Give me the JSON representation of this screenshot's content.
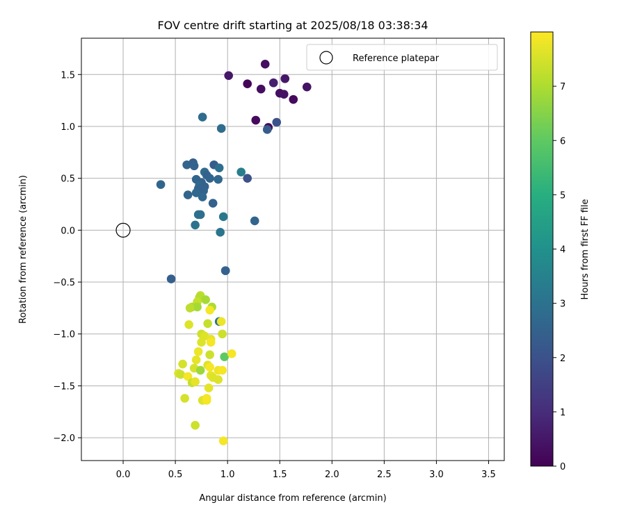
{
  "chart_data": {
    "type": "scatter",
    "title": "FOV centre drift starting at 2025/08/18 03:38:34",
    "xlabel": "Angular distance from reference (arcmin)",
    "ylabel": "Rotation from reference (arcmin)",
    "xlim": [
      -0.4,
      3.65
    ],
    "ylim": [
      -2.22,
      1.85
    ],
    "xticks": [
      0.0,
      0.5,
      1.0,
      1.5,
      2.0,
      2.5,
      3.0,
      3.5
    ],
    "yticks": [
      -2.0,
      -1.5,
      -1.0,
      -0.5,
      0.0,
      0.5,
      1.0,
      1.5
    ],
    "xtick_labels": [
      "0.0",
      "0.5",
      "1.0",
      "1.5",
      "2.0",
      "2.5",
      "3.0",
      "3.5"
    ],
    "ytick_labels": [
      "−2.0",
      "−1.5",
      "−1.0",
      "−0.5",
      "0.0",
      "0.5",
      "1.0",
      "1.5"
    ],
    "grid": true,
    "legend": {
      "location": "top-right",
      "entries": [
        "Reference platepar"
      ]
    },
    "reference_point": {
      "x": 0.0,
      "y": 0.0
    },
    "colorbar": {
      "label": "Hours from first FF file",
      "colormap": "viridis",
      "range": [
        0,
        8
      ],
      "ticks": [
        0,
        1,
        2,
        3,
        4,
        5,
        6,
        7
      ],
      "tick_labels": [
        "0",
        "1",
        "2",
        "3",
        "4",
        "5",
        "6",
        "7"
      ]
    },
    "points": [
      {
        "x": 1.36,
        "y": 1.6,
        "c": 0.3
      },
      {
        "x": 1.01,
        "y": 1.49,
        "c": 0.5
      },
      {
        "x": 1.55,
        "y": 1.46,
        "c": 0.5
      },
      {
        "x": 1.44,
        "y": 1.42,
        "c": 0.7
      },
      {
        "x": 1.19,
        "y": 1.41,
        "c": 0.1
      },
      {
        "x": 1.76,
        "y": 1.38,
        "c": 0.4
      },
      {
        "x": 1.32,
        "y": 1.36,
        "c": 0.3
      },
      {
        "x": 1.5,
        "y": 1.32,
        "c": 0.3
      },
      {
        "x": 1.54,
        "y": 1.31,
        "c": 0.4
      },
      {
        "x": 1.63,
        "y": 1.26,
        "c": 0.2
      },
      {
        "x": 1.27,
        "y": 1.06,
        "c": 0.2
      },
      {
        "x": 1.47,
        "y": 1.04,
        "c": 2.0
      },
      {
        "x": 1.39,
        "y": 0.99,
        "c": 0.1
      },
      {
        "x": 1.38,
        "y": 0.97,
        "c": 2.3
      },
      {
        "x": 0.76,
        "y": 1.09,
        "c": 2.8
      },
      {
        "x": 0.94,
        "y": 0.98,
        "c": 2.8
      },
      {
        "x": 0.61,
        "y": 0.63,
        "c": 2.6
      },
      {
        "x": 0.67,
        "y": 0.65,
        "c": 2.4
      },
      {
        "x": 0.68,
        "y": 0.62,
        "c": 2.5
      },
      {
        "x": 0.87,
        "y": 0.63,
        "c": 2.3
      },
      {
        "x": 0.92,
        "y": 0.6,
        "c": 2.9
      },
      {
        "x": 0.78,
        "y": 0.56,
        "c": 2.8
      },
      {
        "x": 0.8,
        "y": 0.53,
        "c": 2.5
      },
      {
        "x": 0.83,
        "y": 0.5,
        "c": 2.6
      },
      {
        "x": 1.13,
        "y": 0.56,
        "c": 3.4
      },
      {
        "x": 1.19,
        "y": 0.5,
        "c": 2.0
      },
      {
        "x": 0.91,
        "y": 0.49,
        "c": 2.7
      },
      {
        "x": 0.7,
        "y": 0.49,
        "c": 2.6
      },
      {
        "x": 0.75,
        "y": 0.46,
        "c": 2.5
      },
      {
        "x": 0.73,
        "y": 0.43,
        "c": 2.7
      },
      {
        "x": 0.78,
        "y": 0.42,
        "c": 2.5
      },
      {
        "x": 0.72,
        "y": 0.4,
        "c": 2.6
      },
      {
        "x": 0.77,
        "y": 0.38,
        "c": 2.6
      },
      {
        "x": 0.74,
        "y": 0.36,
        "c": 2.5
      },
      {
        "x": 0.36,
        "y": 0.44,
        "c": 2.6
      },
      {
        "x": 0.62,
        "y": 0.34,
        "c": 2.6
      },
      {
        "x": 0.7,
        "y": 0.36,
        "c": 2.7
      },
      {
        "x": 0.76,
        "y": 0.32,
        "c": 2.7
      },
      {
        "x": 0.86,
        "y": 0.26,
        "c": 2.5
      },
      {
        "x": 0.72,
        "y": 0.15,
        "c": 3.0
      },
      {
        "x": 0.74,
        "y": 0.15,
        "c": 2.9
      },
      {
        "x": 0.96,
        "y": 0.13,
        "c": 3.2
      },
      {
        "x": 0.69,
        "y": 0.05,
        "c": 3.0
      },
      {
        "x": 1.26,
        "y": 0.09,
        "c": 2.6
      },
      {
        "x": 0.93,
        "y": -0.02,
        "c": 3.1
      },
      {
        "x": 0.98,
        "y": -0.39,
        "c": 2.5
      },
      {
        "x": 0.98,
        "y": -0.39,
        "c": 2.5
      },
      {
        "x": 0.46,
        "y": -0.47,
        "c": 2.4
      },
      {
        "x": 0.74,
        "y": -0.63,
        "c": 7.2
      },
      {
        "x": 0.73,
        "y": -0.65,
        "c": 7.1
      },
      {
        "x": 0.79,
        "y": -0.67,
        "c": 6.9
      },
      {
        "x": 0.71,
        "y": -0.69,
        "c": 7.3
      },
      {
        "x": 0.66,
        "y": -0.74,
        "c": 7.0
      },
      {
        "x": 0.71,
        "y": -0.74,
        "c": 6.9
      },
      {
        "x": 0.85,
        "y": -0.74,
        "c": 7.0
      },
      {
        "x": 0.64,
        "y": -0.75,
        "c": 7.2
      },
      {
        "x": 0.83,
        "y": -0.77,
        "c": 7.9
      },
      {
        "x": 0.92,
        "y": -0.88,
        "c": 3.1
      },
      {
        "x": 0.94,
        "y": -0.88,
        "c": 7.8
      },
      {
        "x": 0.63,
        "y": -0.91,
        "c": 7.6
      },
      {
        "x": 0.81,
        "y": -0.9,
        "c": 7.3
      },
      {
        "x": 0.75,
        "y": -1.0,
        "c": 7.4
      },
      {
        "x": 0.78,
        "y": -1.02,
        "c": 7.6
      },
      {
        "x": 0.95,
        "y": -1.0,
        "c": 7.4
      },
      {
        "x": 0.84,
        "y": -1.05,
        "c": 7.7
      },
      {
        "x": 0.75,
        "y": -1.08,
        "c": 7.6
      },
      {
        "x": 0.84,
        "y": -1.08,
        "c": 7.9
      },
      {
        "x": 0.72,
        "y": -1.17,
        "c": 7.8
      },
      {
        "x": 0.83,
        "y": -1.2,
        "c": 7.4
      },
      {
        "x": 0.97,
        "y": -1.22,
        "c": 6.0
      },
      {
        "x": 1.04,
        "y": -1.19,
        "c": 7.9
      },
      {
        "x": 0.7,
        "y": -1.25,
        "c": 7.7
      },
      {
        "x": 0.57,
        "y": -1.29,
        "c": 7.5
      },
      {
        "x": 0.81,
        "y": -1.3,
        "c": 7.6
      },
      {
        "x": 0.83,
        "y": -1.32,
        "c": 7.9
      },
      {
        "x": 0.68,
        "y": -1.33,
        "c": 7.5
      },
      {
        "x": 0.74,
        "y": -1.35,
        "c": 6.8
      },
      {
        "x": 0.91,
        "y": -1.35,
        "c": 7.8
      },
      {
        "x": 0.95,
        "y": -1.35,
        "c": 7.9
      },
      {
        "x": 0.53,
        "y": -1.38,
        "c": 7.6
      },
      {
        "x": 0.55,
        "y": -1.39,
        "c": 7.4
      },
      {
        "x": 0.62,
        "y": -1.41,
        "c": 7.9
      },
      {
        "x": 0.84,
        "y": -1.4,
        "c": 7.7
      },
      {
        "x": 0.86,
        "y": -1.42,
        "c": 7.6
      },
      {
        "x": 0.91,
        "y": -1.44,
        "c": 7.6
      },
      {
        "x": 0.66,
        "y": -1.47,
        "c": 7.3
      },
      {
        "x": 0.69,
        "y": -1.46,
        "c": 7.7
      },
      {
        "x": 0.82,
        "y": -1.52,
        "c": 7.7
      },
      {
        "x": 0.59,
        "y": -1.62,
        "c": 7.5
      },
      {
        "x": 0.76,
        "y": -1.64,
        "c": 7.6
      },
      {
        "x": 0.8,
        "y": -1.62,
        "c": 7.9
      },
      {
        "x": 0.8,
        "y": -1.64,
        "c": 7.9
      },
      {
        "x": 0.69,
        "y": -1.88,
        "c": 7.4
      },
      {
        "x": 0.96,
        "y": -2.03,
        "c": 7.9
      }
    ]
  }
}
